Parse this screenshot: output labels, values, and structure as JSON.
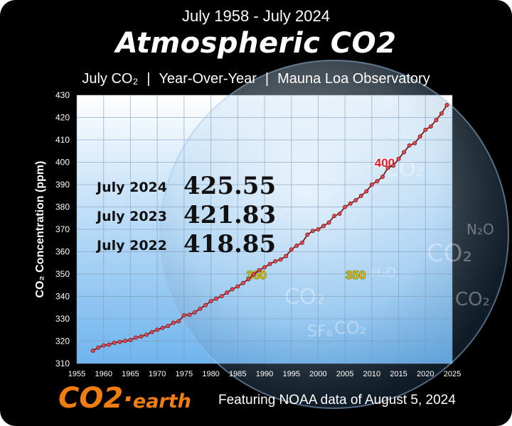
{
  "header": {
    "date_range": "July 1958 - July 2024",
    "title": "Atmospheric CO2",
    "subtitle_items": [
      "July CO₂",
      "Year-Over-Year",
      "Mauna Loa Observatory"
    ],
    "separator": "|"
  },
  "readings": [
    {
      "label": "July 2024",
      "value": "425.55"
    },
    {
      "label": "July 2023",
      "value": "421.83"
    },
    {
      "label": "July 2022",
      "value": "418.85"
    }
  ],
  "background_glyphs": [
    "CO₂",
    "CH₄",
    "SF₆",
    "N₂O",
    "H₂O"
  ],
  "footer": {
    "logo_main": "CO2",
    "logo_dot": "·",
    "logo_suffix": "earth",
    "note": "Featuring NOAA data of August 5, 2024"
  },
  "colors": {
    "frame": "#000000",
    "plot_top": "#ffffff",
    "plot_bottom": "#6fb4ee",
    "line": "#7a1a1a",
    "marker": "#e04a55",
    "label_400": "#e0192a",
    "label_350": "#f2a81d",
    "label_350_outline": "#3a9a1a",
    "logo": "#f07d10"
  },
  "chart_data": {
    "type": "line",
    "xlabel": "",
    "ylabel": "CO₂ Concentration (ppm)",
    "xlim": [
      1955,
      2025
    ],
    "ylim": [
      310,
      430
    ],
    "xticks": [
      1955,
      1960,
      1965,
      1970,
      1975,
      1980,
      1985,
      1990,
      1995,
      2000,
      2005,
      2010,
      2015,
      2020,
      2025
    ],
    "yticks": [
      310,
      320,
      330,
      340,
      350,
      360,
      370,
      380,
      390,
      400,
      410,
      420,
      430
    ],
    "grid": true,
    "series": [
      {
        "x": [
          1958,
          1959,
          1960,
          1961,
          1962,
          1963,
          1964,
          1965,
          1966,
          1967,
          1968,
          1969,
          1970,
          1971,
          1972,
          1973,
          1974,
          1975,
          1976,
          1977,
          1978,
          1979,
          1980,
          1981,
          1982,
          1983,
          1984,
          1985,
          1986,
          1987,
          1988,
          1989,
          1990,
          1991,
          1992,
          1993,
          1994,
          1995,
          1996,
          1997,
          1998,
          1999,
          2000,
          2001,
          2002,
          2003,
          2004,
          2005,
          2006,
          2007,
          2008,
          2009,
          2010,
          2011,
          2012,
          2013,
          2014,
          2015,
          2016,
          2017,
          2018,
          2019,
          2020,
          2021,
          2022,
          2023,
          2024
        ],
        "y": [
          315.7,
          317.1,
          318.1,
          318.4,
          319.3,
          319.7,
          320.1,
          320.5,
          321.6,
          322.1,
          322.9,
          324.1,
          325.1,
          325.9,
          326.8,
          328.2,
          328.9,
          331.6,
          331.8,
          332.9,
          334.5,
          336.1,
          337.9,
          339.0,
          340.1,
          341.7,
          343.2,
          344.5,
          346.0,
          347.7,
          349.9,
          351.7,
          353.0,
          354.5,
          355.7,
          356.5,
          358.0,
          361.0,
          362.7,
          364.0,
          367.6,
          369.3,
          370.0,
          371.5,
          373.0,
          376.0,
          377.0,
          380.0,
          381.5,
          383.0,
          385.0,
          387.0,
          390.0,
          391.5,
          393.5,
          397.5,
          398.5,
          401.5,
          404.5,
          407.5,
          408.5,
          411.5,
          414.5,
          416.0,
          418.85,
          421.83,
          425.55
        ]
      }
    ],
    "annotations": [
      {
        "text": "400",
        "x": 2012.4,
        "y": 400.1,
        "angle": 0
      },
      {
        "text": "350",
        "x": 1988.5,
        "y": 350,
        "angle": 0
      },
      {
        "text": "350",
        "x": 2007.0,
        "y": 350,
        "angle": 0
      }
    ]
  }
}
